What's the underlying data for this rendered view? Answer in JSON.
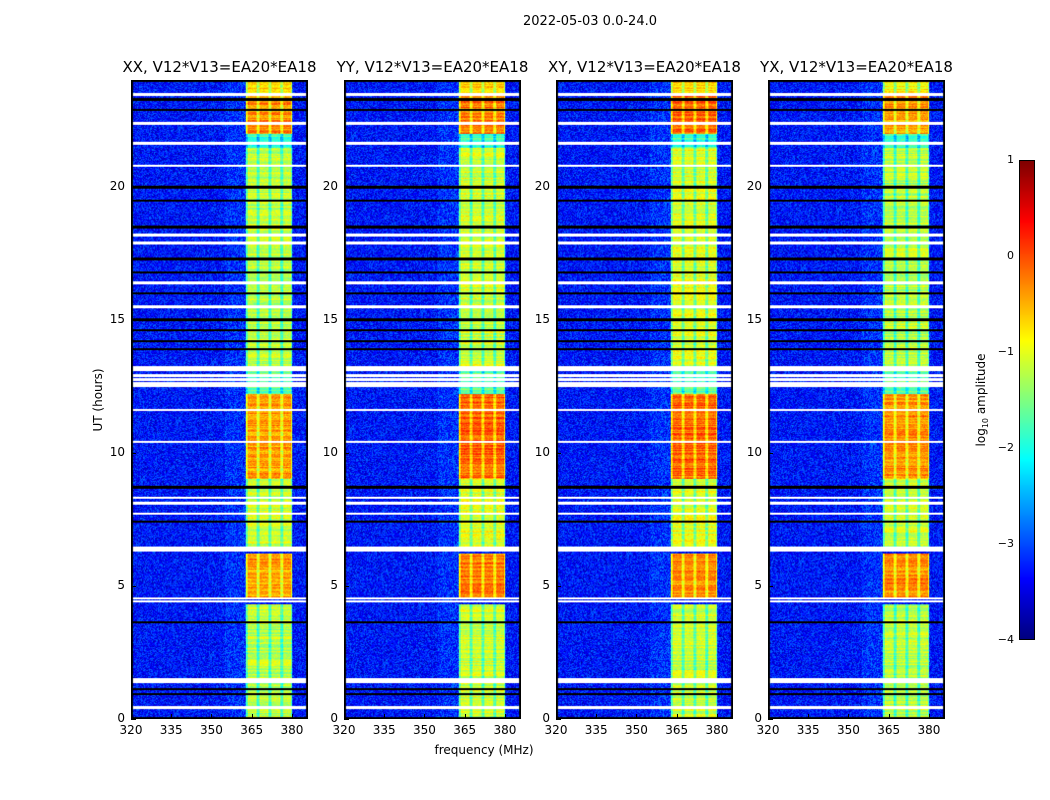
{
  "chart_data": {
    "type": "heatmap",
    "title": "2022-05-03 0.0-24.0",
    "xlabel": "frequency (MHz)",
    "ylabel": "UT (hours)",
    "xlim": [
      320,
      386
    ],
    "ylim": [
      0,
      24
    ],
    "xticks": [
      "320",
      "335",
      "350",
      "365",
      "380"
    ],
    "yticks": [
      "0",
      "5",
      "10",
      "15",
      "20"
    ],
    "colorbar": {
      "label": "log10 amplitude",
      "label_main": "log",
      "label_sub": "10",
      "label_rest": " amplitude",
      "range": [
        -4,
        1
      ],
      "ticks": [
        "1",
        "0",
        "−1",
        "−2",
        "−3",
        "−4"
      ],
      "colormap": "jet"
    },
    "background_level": -3.3,
    "band_channels_mhz": [
      [
        363,
        367.5
      ],
      [
        367.5,
        372
      ],
      [
        372,
        376.5
      ],
      [
        376.5,
        380.5
      ]
    ],
    "flagged_white_hours": [
      0.4,
      1.35,
      1.45,
      4.4,
      4.5,
      6.3,
      6.4,
      7.7,
      8.1,
      8.3,
      10.4,
      11.6,
      12.5,
      12.6,
      12.75,
      12.9,
      13.1,
      13.2,
      15.5,
      16.4,
      17.9,
      18.2,
      20.8,
      21.65,
      22.4,
      23.5
    ],
    "flagged_black_hours": [
      0.9,
      1.1,
      3.6,
      7.4,
      8.7,
      13.9,
      14.2,
      14.6,
      15.0,
      16.0,
      16.8,
      17.3,
      18.5,
      19.5,
      20.0,
      22.9,
      23.3
    ],
    "panels": [
      {
        "title": "XX, V12*V13=EA20*EA18",
        "band_segments": [
          [
            0,
            4.3,
            -1.2
          ],
          [
            4.5,
            6.2,
            -0.4
          ],
          [
            6.4,
            9,
            -1.1
          ],
          [
            9,
            12.2,
            -0.4
          ],
          [
            12.2,
            13.2,
            -1.6
          ],
          [
            13.2,
            21.5,
            -1.2
          ],
          [
            21.5,
            22.0,
            -1.8
          ],
          [
            22.0,
            23.5,
            -0.3
          ],
          [
            23.5,
            24,
            -0.7
          ]
        ]
      },
      {
        "title": "YY, V12*V13=EA20*EA18",
        "band_segments": [
          [
            0,
            4.3,
            -1.1
          ],
          [
            4.5,
            6.2,
            -0.2
          ],
          [
            6.4,
            9,
            -1.0
          ],
          [
            9,
            12.2,
            -0.1
          ],
          [
            12.2,
            13.2,
            -1.6
          ],
          [
            13.2,
            21.5,
            -1.1
          ],
          [
            21.5,
            22.0,
            -1.8
          ],
          [
            22.0,
            23.5,
            -0.2
          ],
          [
            23.5,
            24,
            -0.7
          ]
        ]
      },
      {
        "title": "XY, V12*V13=EA20*EA18",
        "band_segments": [
          [
            0,
            4.3,
            -1.1
          ],
          [
            4.5,
            6.2,
            -0.3
          ],
          [
            6.4,
            9,
            -1.0
          ],
          [
            9,
            12.2,
            -0.1
          ],
          [
            12.2,
            13.2,
            -1.6
          ],
          [
            13.2,
            21.5,
            -1.0
          ],
          [
            21.5,
            22.0,
            -1.8
          ],
          [
            22.0,
            23.5,
            -0.1
          ],
          [
            23.5,
            24,
            -0.6
          ]
        ]
      },
      {
        "title": "YX, V12*V13=EA20*EA18",
        "band_segments": [
          [
            0,
            4.3,
            -1.2
          ],
          [
            4.5,
            6.2,
            -0.3
          ],
          [
            6.4,
            9,
            -1.1
          ],
          [
            9,
            12.2,
            -0.3
          ],
          [
            12.2,
            13.2,
            -1.6
          ],
          [
            13.2,
            21.5,
            -1.2
          ],
          [
            21.5,
            22.0,
            -1.8
          ],
          [
            22.0,
            23.5,
            -0.4
          ],
          [
            23.5,
            24,
            -0.8
          ]
        ]
      }
    ]
  }
}
